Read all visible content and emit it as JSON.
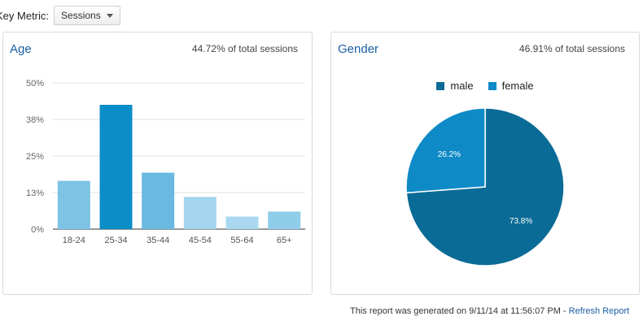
{
  "key_metric": {
    "label": "Key Metric:",
    "selected": "Sessions"
  },
  "age_card": {
    "title": "Age",
    "subtitle": "44.72% of total sessions"
  },
  "gender_card": {
    "title": "Gender",
    "subtitle": "46.91% of total sessions"
  },
  "footer": {
    "text": "This report was generated on 9/11/14 at 11:56:07 PM - ",
    "link": "Refresh Report"
  },
  "chart_data": [
    {
      "type": "bar",
      "title": "Age",
      "categories": [
        "18-24",
        "25-34",
        "35-44",
        "45-54",
        "55-64",
        "65+"
      ],
      "values": [
        16.5,
        42.5,
        19.3,
        11.0,
        4.3,
        6.0
      ],
      "yticks": [
        "0%",
        "13%",
        "25%",
        "38%",
        "50%"
      ],
      "ylim": [
        0,
        50
      ],
      "grid": true,
      "colors": [
        "#7cc3e6",
        "#0b8dc8",
        "#6ab9e1",
        "#a4d6ef",
        "#a9d8f0",
        "#8fcdeb"
      ]
    },
    {
      "type": "pie",
      "title": "Gender",
      "series": [
        {
          "name": "male",
          "value": 73.8,
          "label": "73.8%",
          "color": "#0a6b96"
        },
        {
          "name": "female",
          "value": 26.2,
          "label": "26.2%",
          "color": "#0e8ac7"
        }
      ],
      "legend_position": "top"
    }
  ]
}
